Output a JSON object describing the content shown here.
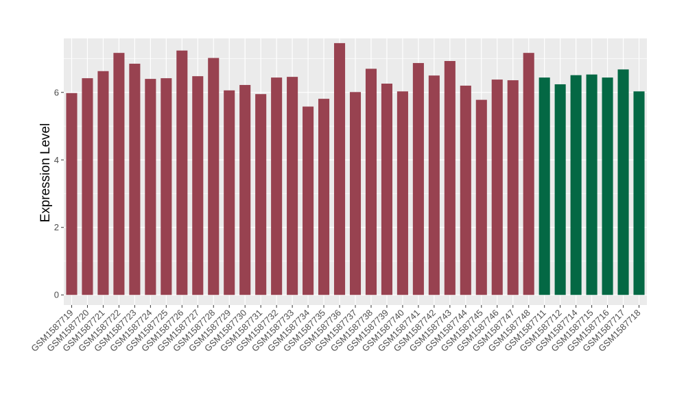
{
  "chart_data": {
    "type": "bar",
    "ylabel": "Expression Level",
    "xlabel": "",
    "ylim": [
      -0.3,
      7.6
    ],
    "yticks": [
      0,
      2,
      4,
      6
    ],
    "grid": true,
    "legend": "none",
    "colors": {
      "group_a": "#984250",
      "group_b": "#046844",
      "panel": "#EBEBEB",
      "gridline": "#FFFFFF"
    },
    "categories": [
      "GSM1587719",
      "GSM1587720",
      "GSM1587721",
      "GSM1587722",
      "GSM1587723",
      "GSM1587724",
      "GSM1587725",
      "GSM1587726",
      "GSM1587727",
      "GSM1587728",
      "GSM1587729",
      "GSM1587730",
      "GSM1587731",
      "GSM1587732",
      "GSM1587733",
      "GSM1587734",
      "GSM1587735",
      "GSM1587736",
      "GSM1587737",
      "GSM1587738",
      "GSM1587739",
      "GSM1587740",
      "GSM1587741",
      "GSM1587742",
      "GSM1587743",
      "GSM1587744",
      "GSM1587745",
      "GSM1587746",
      "GSM1587747",
      "GSM1587748",
      "GSM1587711",
      "GSM1587712",
      "GSM1587714",
      "GSM1587715",
      "GSM1587716",
      "GSM1587717",
      "GSM1587718"
    ],
    "values": [
      5.98,
      6.42,
      6.63,
      7.17,
      6.85,
      6.4,
      6.42,
      7.24,
      6.48,
      7.02,
      6.06,
      6.22,
      5.95,
      6.44,
      6.46,
      5.58,
      5.81,
      7.46,
      6.01,
      6.7,
      6.26,
      6.03,
      6.87,
      6.5,
      6.93,
      6.2,
      5.78,
      6.38,
      6.36,
      7.17,
      6.44,
      6.24,
      6.51,
      6.53,
      6.44,
      6.68,
      6.03
    ],
    "groups": [
      "group_a",
      "group_a",
      "group_a",
      "group_a",
      "group_a",
      "group_a",
      "group_a",
      "group_a",
      "group_a",
      "group_a",
      "group_a",
      "group_a",
      "group_a",
      "group_a",
      "group_a",
      "group_a",
      "group_a",
      "group_a",
      "group_a",
      "group_a",
      "group_a",
      "group_a",
      "group_a",
      "group_a",
      "group_a",
      "group_a",
      "group_a",
      "group_a",
      "group_a",
      "group_a",
      "group_b",
      "group_b",
      "group_b",
      "group_b",
      "group_b",
      "group_b",
      "group_b"
    ]
  }
}
